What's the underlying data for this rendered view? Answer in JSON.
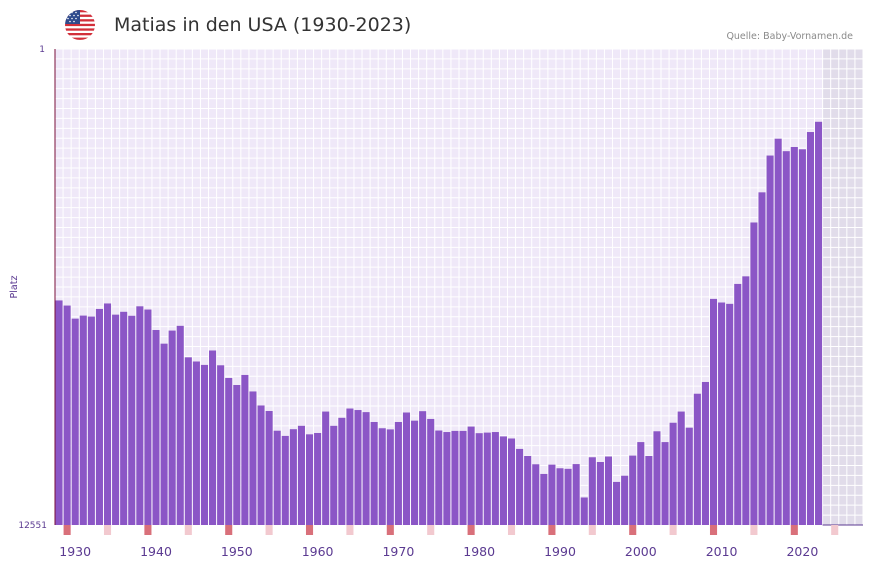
{
  "title": "Matias in den USA (1930-2023)",
  "source": "Quelle: Baby-Vornamen.de",
  "flag_icon": "us-flag-icon",
  "colors": {
    "bar": "#8b56c6",
    "axis": "#7a0f3a",
    "tick": "#d9707a",
    "tick_light": "#f2c9cf",
    "plot_bg": "#efe8f8",
    "future_bg": "#e1dcea",
    "label": "#5b3a91"
  },
  "chart_data": {
    "type": "bar",
    "title": "Matias in den USA (1930-2023)",
    "xlabel": "",
    "ylabel": "Platz",
    "y_top": 1,
    "y_bottom": 12551,
    "y_tick_labels": [
      "1",
      "12551"
    ],
    "x_tick_labels": [
      "1930",
      "1940",
      "1950",
      "1960",
      "1970",
      "1980",
      "1990",
      "2000",
      "2010",
      "2020"
    ],
    "x_range": [
      1928,
      2028
    ],
    "series": [
      {
        "name": "Matias",
        "years": [
          1928,
          1929,
          1930,
          1931,
          1932,
          1933,
          1934,
          1935,
          1936,
          1937,
          1938,
          1939,
          1940,
          1941,
          1942,
          1943,
          1944,
          1945,
          1946,
          1947,
          1948,
          1949,
          1950,
          1951,
          1952,
          1953,
          1954,
          1955,
          1956,
          1957,
          1958,
          1959,
          1960,
          1961,
          1962,
          1963,
          1964,
          1965,
          1966,
          1967,
          1968,
          1969,
          1970,
          1971,
          1972,
          1973,
          1974,
          1975,
          1976,
          1977,
          1978,
          1979,
          1980,
          1981,
          1982,
          1983,
          1984,
          1985,
          1986,
          1987,
          1988,
          1989,
          1990,
          1991,
          1992,
          1993,
          1994,
          1995,
          1996,
          1997,
          1998,
          1999,
          2000,
          2001,
          2002,
          2003,
          2004,
          2005,
          2006,
          2007,
          2008,
          2009,
          2010,
          2011,
          2012,
          2013,
          2014,
          2015,
          2016,
          2017,
          2018,
          2019,
          2020,
          2021,
          2022
        ],
        "ranks": [
          6630,
          6765,
          7110,
          7030,
          7055,
          6855,
          6710,
          7005,
          6930,
          7035,
          6785,
          6870,
          7410,
          7770,
          7425,
          7300,
          8130,
          8240,
          8330,
          7950,
          8340,
          8675,
          8860,
          8595,
          9030,
          9400,
          9545,
          10065,
          10200,
          10025,
          9935,
          10160,
          10125,
          9560,
          9935,
          9725,
          9480,
          9520,
          9575,
          9835,
          10000,
          10030,
          9835,
          9585,
          9800,
          9550,
          9755,
          10060,
          10100,
          10070,
          10070,
          9955,
          10130,
          10115,
          10100,
          10215,
          10270,
          10545,
          10730,
          10950,
          11205,
          10960,
          11055,
          11070,
          10945,
          11825,
          10765,
          10890,
          10745,
          11415,
          11250,
          10720,
          10365,
          10730,
          10080,
          10365,
          9855,
          9560,
          9985,
          9090,
          8780,
          6590,
          6685,
          6720,
          6195,
          5995,
          4575,
          3780,
          2810,
          2365,
          2695,
          2585,
          2645,
          2190,
          1920
        ]
      }
    ]
  }
}
